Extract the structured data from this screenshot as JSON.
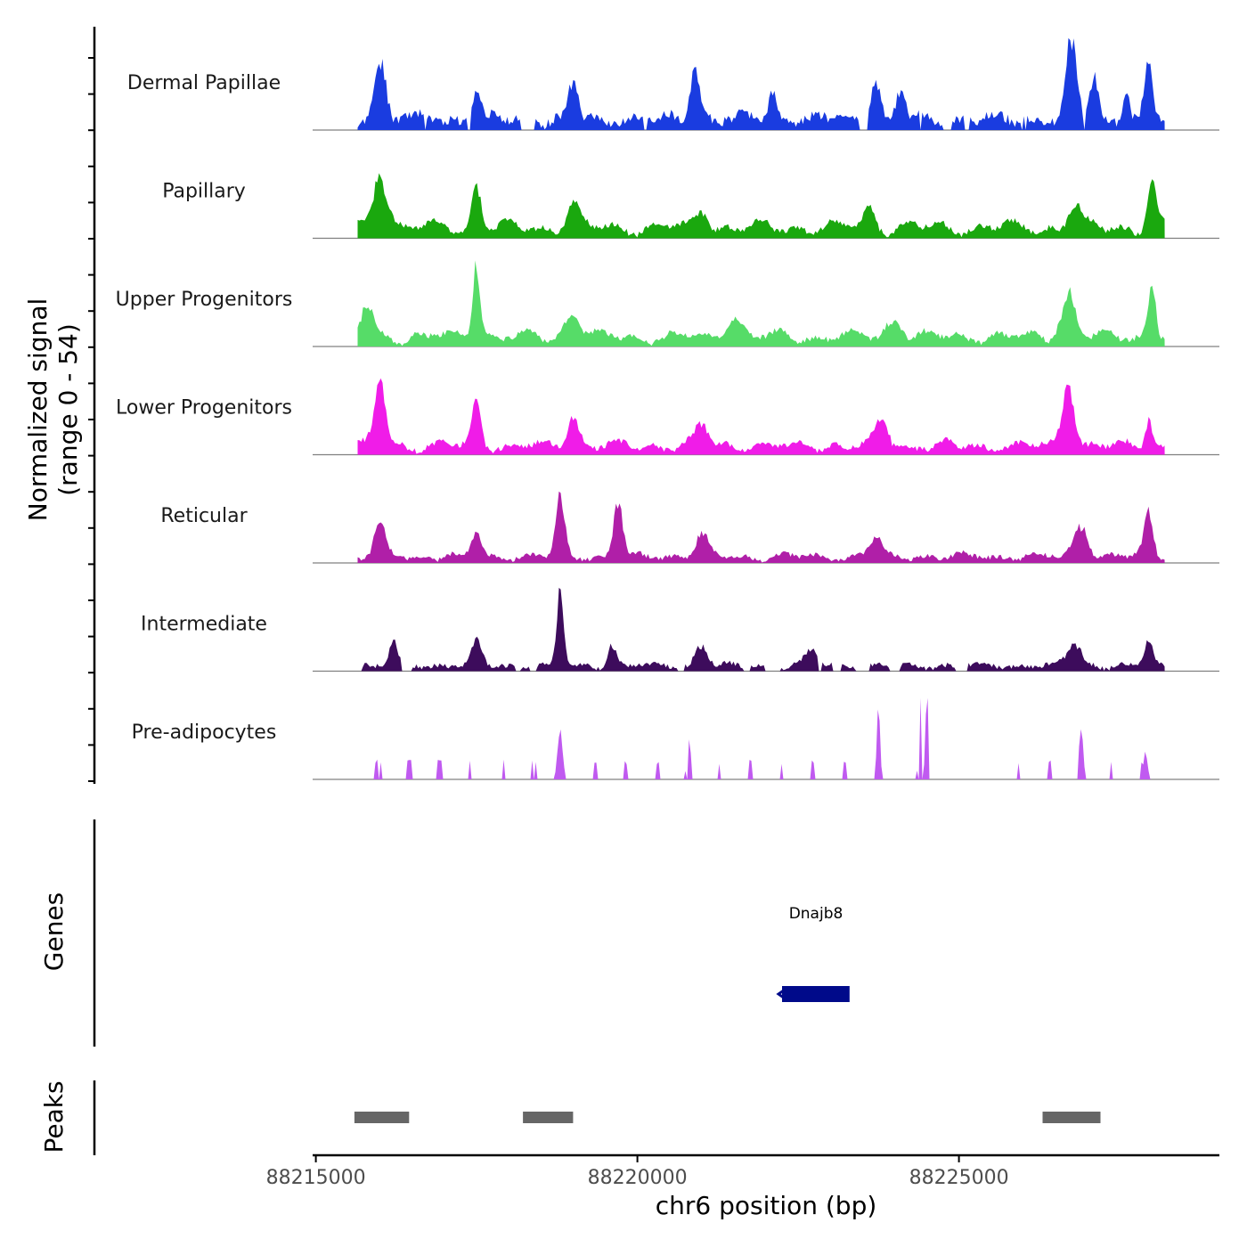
{
  "chart_data": {
    "type": "area",
    "ylabel_line1": "Normalized signal",
    "ylabel_line2": "(range 0 - 54)",
    "ylim": [
      0,
      54
    ],
    "xlabel": "chr6 position (bp)",
    "xlim": [
      88214950,
      88229050
    ],
    "x_ticks": [
      88215000,
      88220000,
      88225000
    ],
    "x_tick_labels": [
      "88215000",
      "88220000",
      "88225000"
    ],
    "signal_range": [
      88215650,
      88228200
    ],
    "tracks": [
      {
        "name": "Dermal Papillae",
        "color": "#1A3CE0",
        "peaks": [
          [
            88216000,
            0.55,
            90
          ],
          [
            88217500,
            0.32,
            60
          ],
          [
            88219000,
            0.35,
            70
          ],
          [
            88220900,
            0.5,
            80
          ],
          [
            88222100,
            0.3,
            60
          ],
          [
            88223700,
            0.42,
            70
          ],
          [
            88224100,
            0.3,
            60
          ],
          [
            88226750,
            0.75,
            80
          ],
          [
            88227100,
            0.45,
            60
          ],
          [
            88227950,
            0.55,
            60
          ],
          [
            88227600,
            0.3,
            50
          ]
        ],
        "base": 0.12,
        "noise": 0.1,
        "gaps": true
      },
      {
        "name": "Papillary",
        "color": "#1AA80E",
        "peaks": [
          [
            88216000,
            0.55,
            110
          ],
          [
            88217500,
            0.42,
            70
          ],
          [
            88219000,
            0.22,
            100
          ],
          [
            88221000,
            0.2,
            90
          ],
          [
            88223600,
            0.2,
            90
          ],
          [
            88226800,
            0.22,
            90
          ],
          [
            88228000,
            0.45,
            70
          ]
        ],
        "base": 0.16,
        "noise": 0.06,
        "gaps": false
      },
      {
        "name": "Upper Progenitors",
        "color": "#56DC68",
        "peaks": [
          [
            88215800,
            0.3,
            100
          ],
          [
            88217500,
            0.75,
            60
          ],
          [
            88219000,
            0.22,
            120
          ],
          [
            88221500,
            0.2,
            120
          ],
          [
            88224000,
            0.18,
            120
          ],
          [
            88226700,
            0.42,
            110
          ],
          [
            88228000,
            0.55,
            60
          ]
        ],
        "base": 0.14,
        "noise": 0.06,
        "gaps": false
      },
      {
        "name": "Lower Progenitors",
        "color": "#F01CE8",
        "peaks": [
          [
            88216000,
            0.7,
            80
          ],
          [
            88217500,
            0.42,
            70
          ],
          [
            88219000,
            0.3,
            90
          ],
          [
            88221000,
            0.22,
            100
          ],
          [
            88223800,
            0.25,
            100
          ],
          [
            88226700,
            0.65,
            90
          ],
          [
            88227950,
            0.3,
            60
          ]
        ],
        "base": 0.12,
        "noise": 0.06,
        "gaps": false
      },
      {
        "name": "Reticular",
        "color": "#B01FA8",
        "peaks": [
          [
            88216000,
            0.35,
            80
          ],
          [
            88217500,
            0.25,
            70
          ],
          [
            88218800,
            0.6,
            70
          ],
          [
            88219700,
            0.55,
            70
          ],
          [
            88221000,
            0.22,
            90
          ],
          [
            88223700,
            0.2,
            90
          ],
          [
            88226900,
            0.3,
            110
          ],
          [
            88227950,
            0.42,
            70
          ]
        ],
        "base": 0.08,
        "noise": 0.05,
        "gaps": false
      },
      {
        "name": "Intermediate",
        "color": "#3D0C5C",
        "peaks": [
          [
            88216200,
            0.25,
            60
          ],
          [
            88217500,
            0.28,
            70
          ],
          [
            88218800,
            0.85,
            50
          ],
          [
            88219600,
            0.22,
            60
          ],
          [
            88221000,
            0.2,
            90
          ],
          [
            88222700,
            0.16,
            90
          ],
          [
            88226800,
            0.22,
            110
          ],
          [
            88227950,
            0.25,
            60
          ]
        ],
        "base": 0.06,
        "noise": 0.05,
        "gaps": true
      },
      {
        "name": "Pre-adipocytes",
        "color": "#C05AF0",
        "peaks": [
          [
            88218800,
            0.45,
            40
          ],
          [
            88220800,
            0.45,
            30
          ],
          [
            88223750,
            0.7,
            25
          ],
          [
            88224400,
            0.75,
            25
          ],
          [
            88224500,
            0.95,
            20
          ],
          [
            88226900,
            0.55,
            30
          ],
          [
            88227900,
            0.3,
            30
          ]
        ],
        "base": 0.0,
        "noise": 0.0,
        "gaps": true,
        "sparse": true
      }
    ],
    "genes": {
      "label": "Genes",
      "items": [
        {
          "name": "Dnajb8",
          "start": 88222250,
          "end": 88223300,
          "strand": "-",
          "color": "#000A8A"
        }
      ]
    },
    "peaks_track": {
      "label": "Peaks",
      "color": "#666666",
      "regions": [
        [
          88215600,
          88216450
        ],
        [
          88218220,
          88219000
        ],
        [
          88226300,
          88227200
        ]
      ]
    }
  }
}
